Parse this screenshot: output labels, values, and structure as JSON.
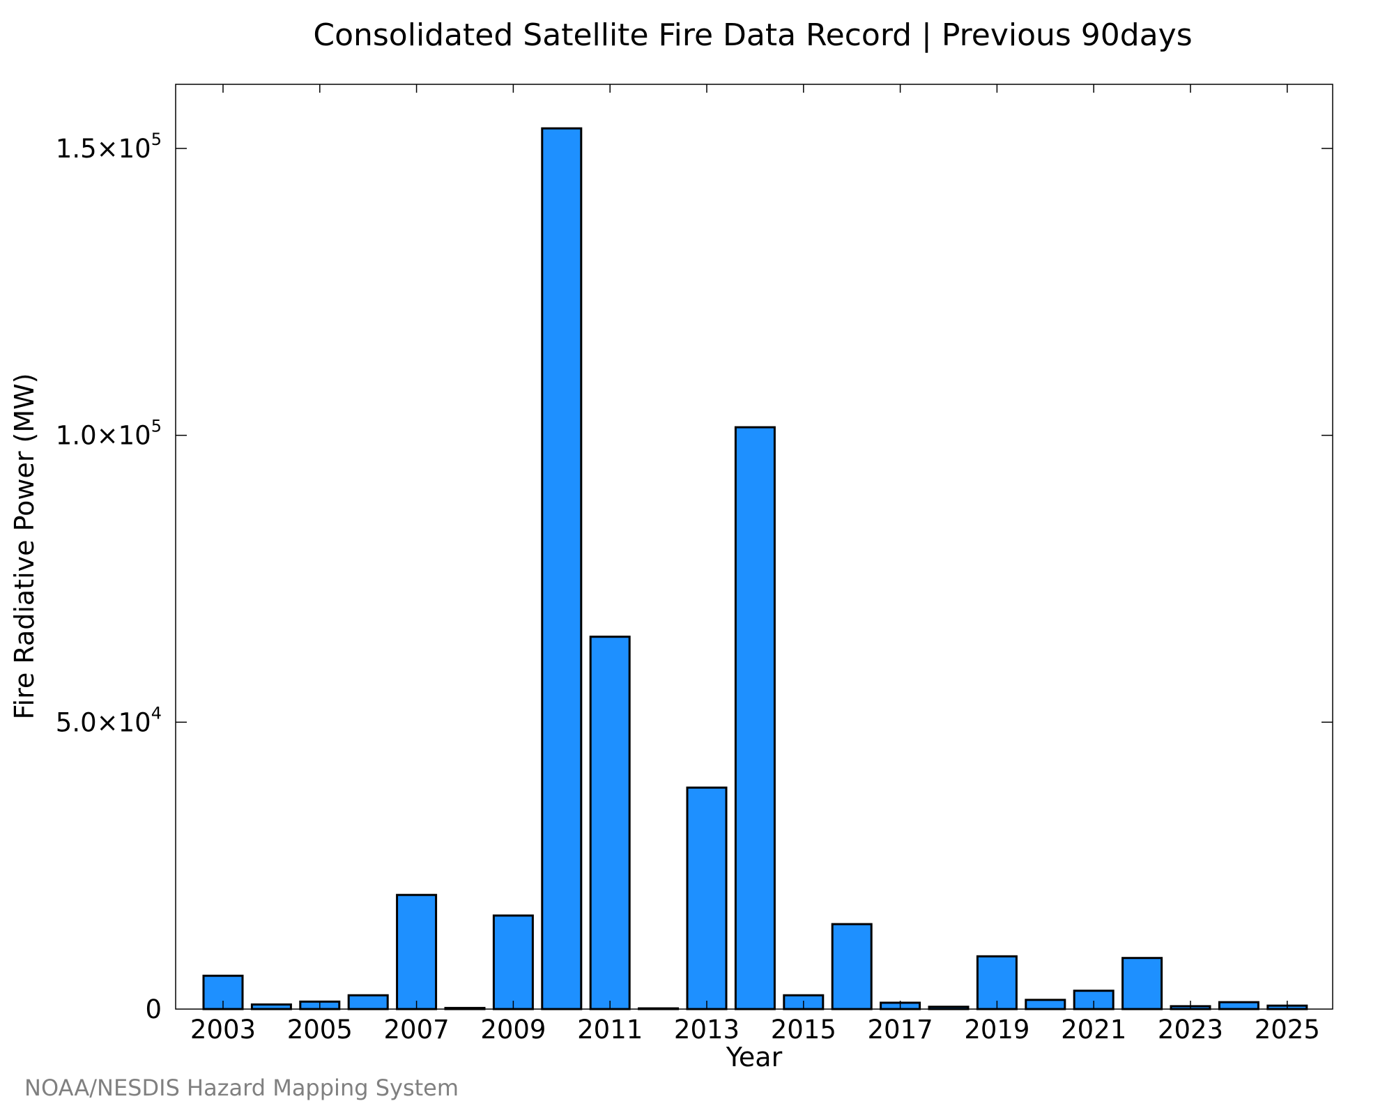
{
  "chart_data": {
    "type": "bar",
    "title": "Consolidated Satellite Fire Data Record | Previous 90days",
    "xlabel": "Year",
    "ylabel": "Fire Radiative Power (MW)",
    "categories": [
      "2003",
      "2004",
      "2005",
      "2006",
      "2007",
      "2008",
      "2009",
      "2010",
      "2011",
      "2012",
      "2013",
      "2014",
      "2015",
      "2016",
      "2017",
      "2018",
      "2019",
      "2020",
      "2021",
      "2022",
      "2023",
      "2024",
      "2025"
    ],
    "x_tick_labels": [
      "2003",
      "2005",
      "2007",
      "2009",
      "2011",
      "2013",
      "2015",
      "2017",
      "2019",
      "2021",
      "2023",
      "2025"
    ],
    "values": [
      5800,
      800,
      1300,
      2400,
      19900,
      200,
      16300,
      153500,
      64900,
      100,
      38600,
      101400,
      2400,
      14800,
      1100,
      400,
      9200,
      1600,
      3200,
      8900,
      500,
      1200,
      600
    ],
    "ylim": [
      0,
      160000
    ],
    "y_ticks": [
      {
        "value": 0,
        "mantissa": "0",
        "exponent": ""
      },
      {
        "value": 50000,
        "mantissa": "5.0×10",
        "exponent": "4"
      },
      {
        "value": 100000,
        "mantissa": "1.0×10",
        "exponent": "5"
      },
      {
        "value": 150000,
        "mantissa": "1.5×10",
        "exponent": "5"
      }
    ],
    "bar_color": "#1E90FF",
    "edge_color": "#000000",
    "grid": false,
    "legend": "none"
  },
  "credit": "NOAA/NESDIS Hazard Mapping System",
  "colors": {
    "background": "#ffffff",
    "credit_text": "#808080"
  }
}
